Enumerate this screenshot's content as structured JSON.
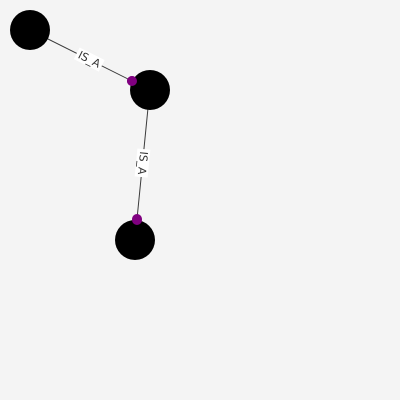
{
  "graph": {
    "background": "#f4f4f4",
    "node_color": "#000000",
    "edge_color": "#3a3a3a",
    "arrow_color": "#800080",
    "nodes": [
      {
        "id": "node-top-left"
      },
      {
        "id": "node-middle"
      },
      {
        "id": "node-bottom"
      }
    ],
    "edges": [
      {
        "from": "node-top-left",
        "to": "node-middle",
        "label": "IS_A"
      },
      {
        "from": "node-middle",
        "to": "node-bottom",
        "label": "IS_A"
      }
    ]
  }
}
